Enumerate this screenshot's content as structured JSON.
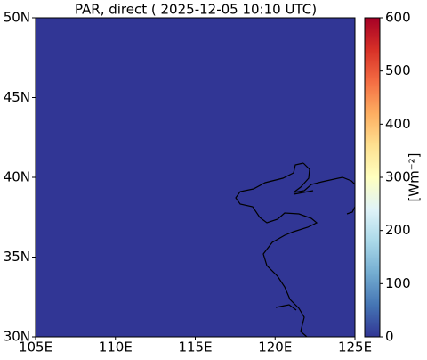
{
  "chart_data": {
    "type": "map",
    "title": "PAR, direct ( 2025-12-05 10:10 UTC)",
    "xlim": [
      105,
      125
    ],
    "ylim": [
      30,
      50
    ],
    "xticks": [
      {
        "value": 105,
        "label": "105E"
      },
      {
        "value": 110,
        "label": "110E"
      },
      {
        "value": 115,
        "label": "115E"
      },
      {
        "value": 120,
        "label": "120E"
      },
      {
        "value": 125,
        "label": "125E"
      }
    ],
    "yticks": [
      {
        "value": 30,
        "label": "30N"
      },
      {
        "value": 35,
        "label": "35N"
      },
      {
        "value": 40,
        "label": "40N"
      },
      {
        "value": 45,
        "label": "45N"
      },
      {
        "value": 50,
        "label": "50N"
      }
    ],
    "value": 0,
    "colorbar": {
      "label": "[Wm⁻²]",
      "lim": [
        0,
        600
      ],
      "ticks": [
        0,
        100,
        200,
        300,
        400,
        500,
        600
      ],
      "colormap": [
        "#313695",
        "#4575b4",
        "#74add1",
        "#abd9e9",
        "#e0f3f8",
        "#ffffbf",
        "#fee090",
        "#fdae61",
        "#f46d43",
        "#d73027",
        "#a50026"
      ]
    }
  }
}
